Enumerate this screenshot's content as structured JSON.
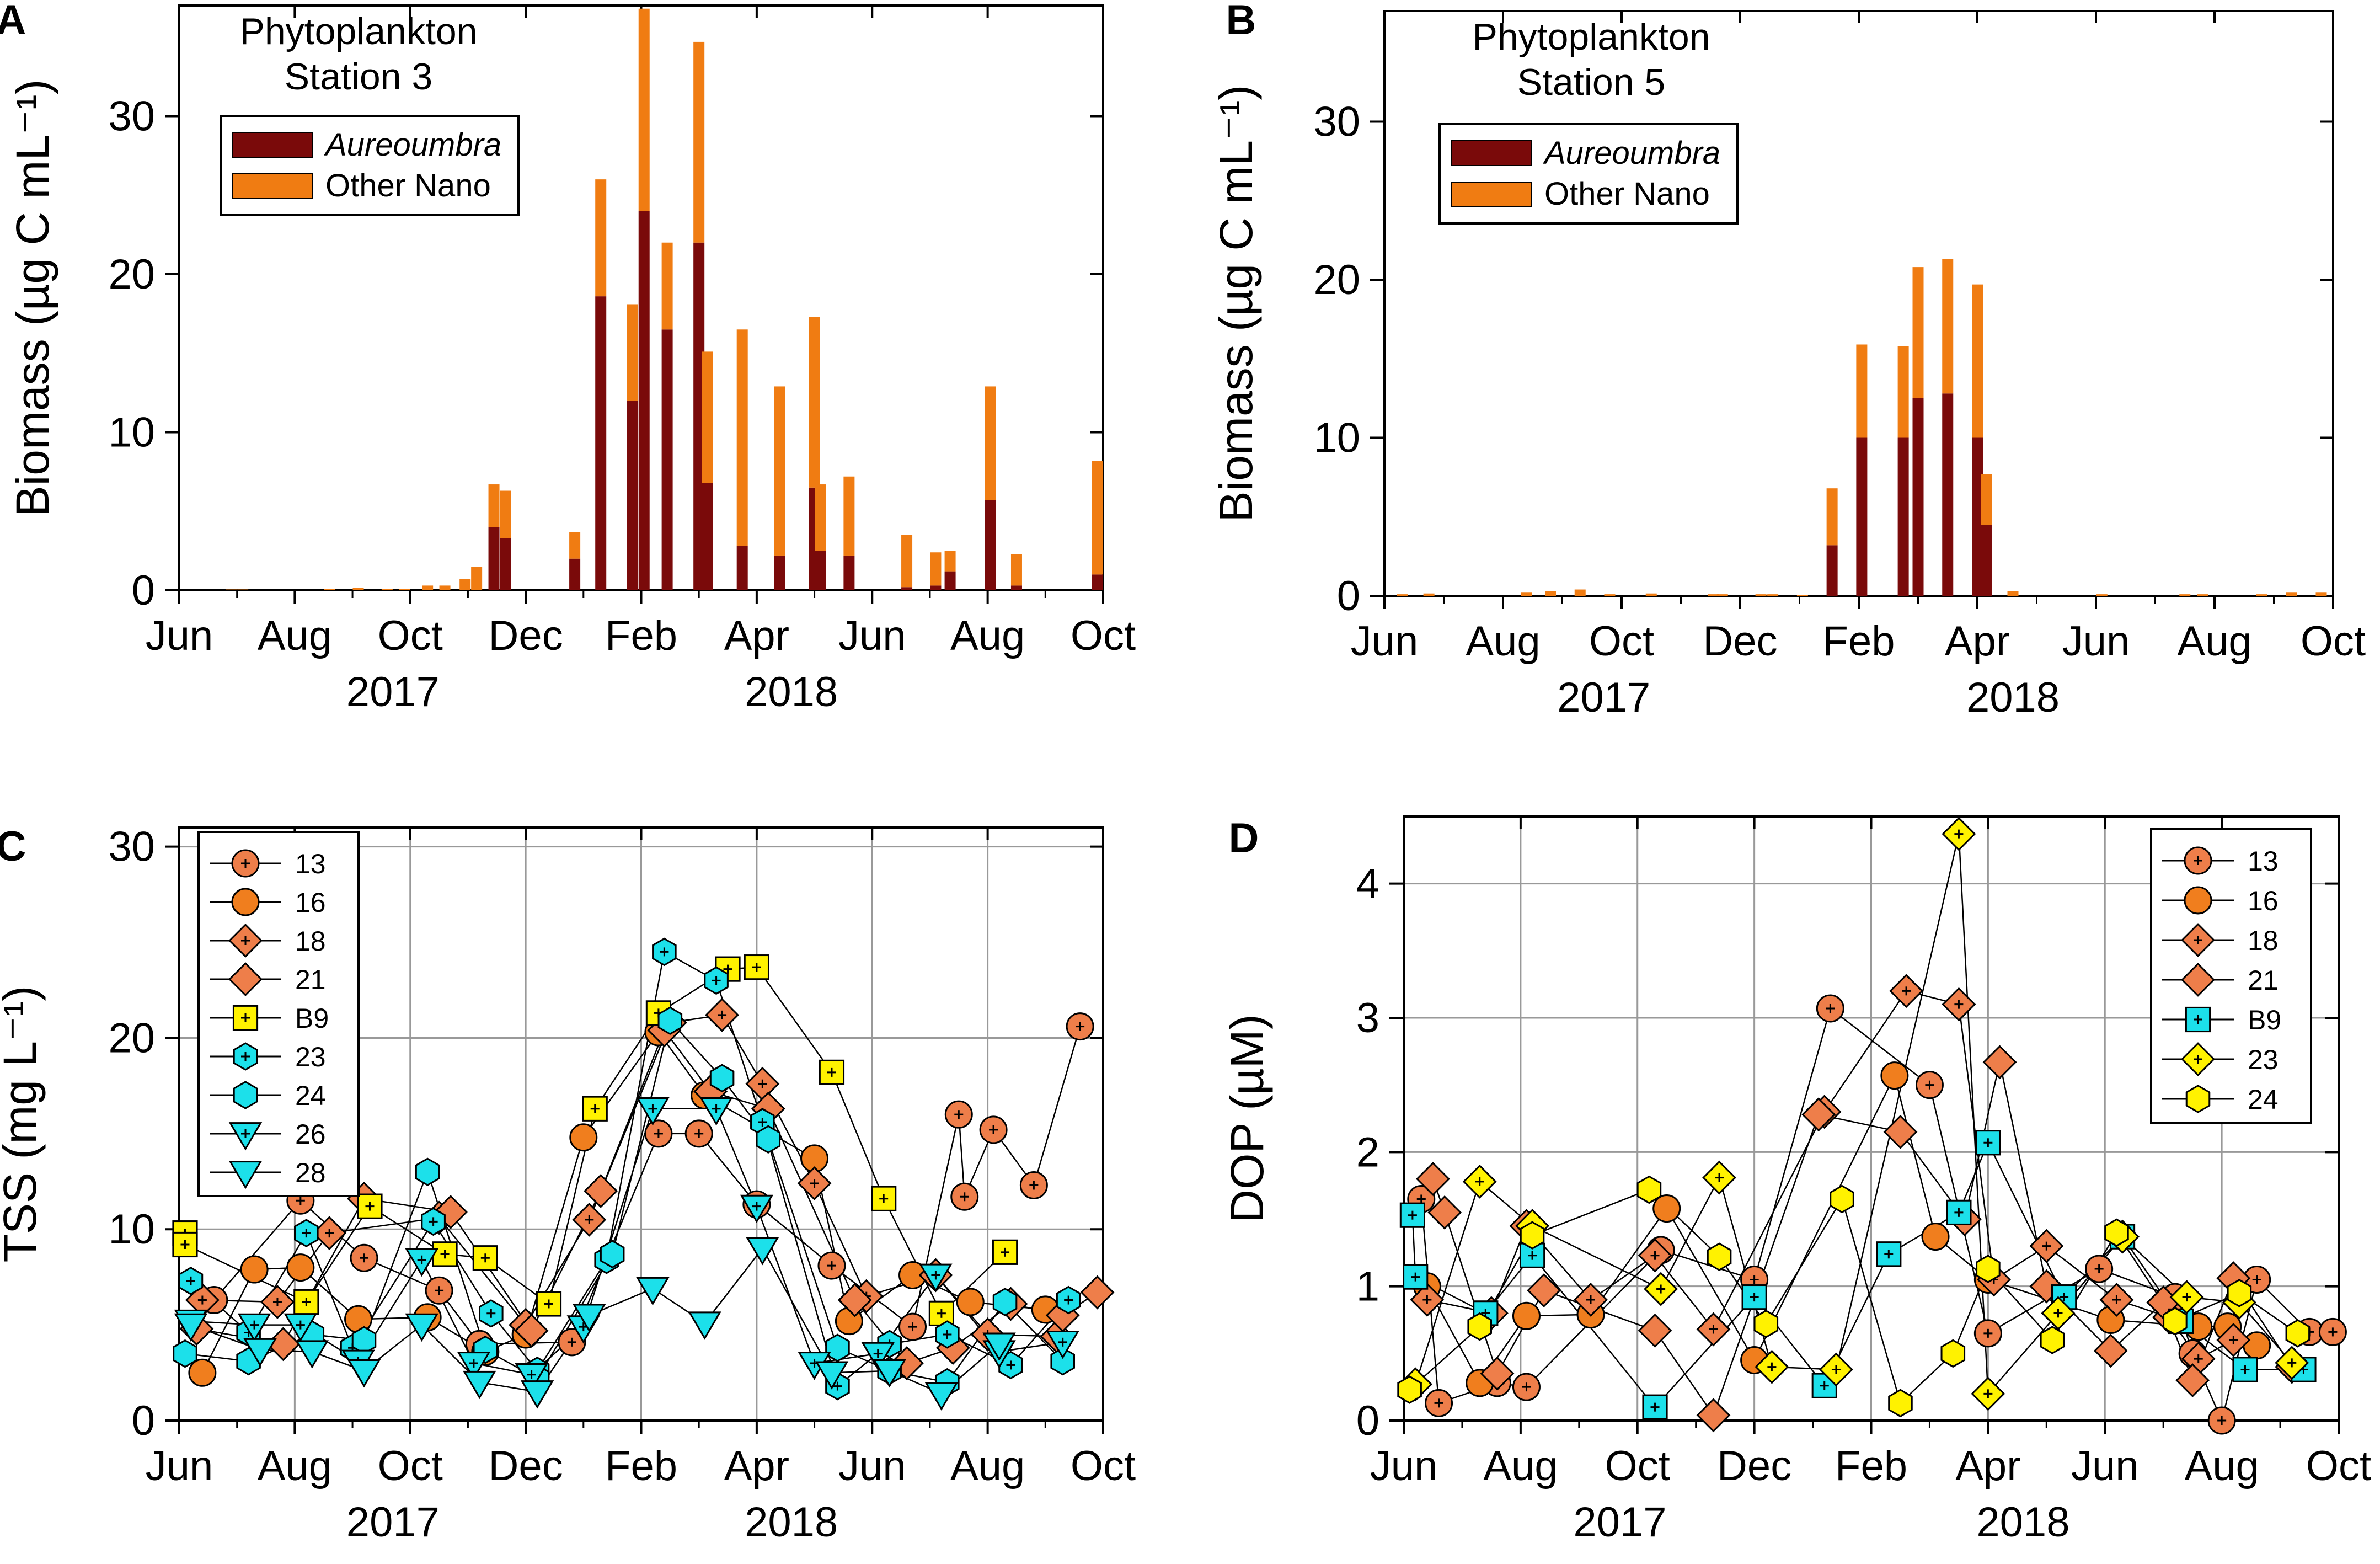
{
  "colors": {
    "aureoumbra": "#7a0a0a",
    "other_nano": "#f07c12",
    "s13": "#ee7e4a",
    "s16": "#f07e1e",
    "s18": "#ee7e4a",
    "s21": "#ee7e4a",
    "b9_yellow": "#fff200",
    "b9_cyan": "#1ce0ea",
    "cyan": "#1ce0ea",
    "yellow": "#fff200",
    "grid": "#999999"
  },
  "chart_data": [
    {
      "id": "A",
      "panel_label": "A",
      "type": "bar",
      "stacked": true,
      "title_line1": "Phytoplankton",
      "title_line2": "Station 3",
      "ylabel": "Biomass (µg C mL⁻¹)",
      "ylim": [
        0,
        37
      ],
      "yticks": [
        0,
        10,
        20,
        30
      ],
      "xlim": [
        0,
        16
      ],
      "xticks": [
        "Jun",
        "Aug",
        "Oct",
        "Dec",
        "Feb",
        "Apr",
        "Jun",
        "Aug",
        "Oct"
      ],
      "year_labels": [
        "2017",
        "2018"
      ],
      "legend": [
        "Aureoumbra",
        "Other Nano"
      ],
      "series": [
        {
          "name": "Aureoumbra",
          "values": [
            0,
            0,
            0,
            0,
            0,
            0,
            0,
            0,
            0,
            0,
            4.0,
            3.3,
            0,
            2.0,
            18.6,
            12.0,
            24.0,
            16.5,
            22.0,
            6.8,
            2.8,
            2.2,
            6.5,
            2.5,
            2.2,
            0.2,
            0.3,
            1.2,
            5.7,
            0.3,
            1.0
          ]
        },
        {
          "name": "Other Nano",
          "values": [
            0.05,
            0.05,
            0.1,
            0.15,
            0.1,
            0.1,
            0.3,
            0.3,
            0.7,
            1.5,
            2.7,
            3.0,
            0,
            1.7,
            7.4,
            6.1,
            12.8,
            5.5,
            12.7,
            8.3,
            13.7,
            10.7,
            10.8,
            4.2,
            5.0,
            3.3,
            2.1,
            1.3,
            7.2,
            2.0,
            7.2
          ]
        }
      ],
      "x": [
        0.9,
        1.1,
        2.6,
        3.1,
        3.6,
        3.9,
        4.3,
        4.6,
        4.95,
        5.15,
        5.45,
        5.65,
        6.4,
        6.85,
        7.3,
        7.85,
        8.05,
        8.45,
        9.0,
        9.15,
        9.75,
        10.4,
        11.0,
        11.1,
        11.6,
        12.6,
        13.1,
        13.35,
        14.05,
        14.5,
        15.9
      ]
    },
    {
      "id": "B",
      "panel_label": "B",
      "type": "bar",
      "stacked": true,
      "title_line1": "Phytoplankton",
      "title_line2": "Station 5",
      "ylabel": "Biomass (µg C mL⁻¹)",
      "ylim": [
        0,
        37
      ],
      "yticks": [
        0,
        10,
        20,
        30
      ],
      "xlim": [
        0,
        16
      ],
      "xticks": [
        "Jun",
        "Aug",
        "Oct",
        "Dec",
        "Feb",
        "Apr",
        "Jun",
        "Aug",
        "Oct"
      ],
      "year_labels": [
        "2017",
        "2018"
      ],
      "legend": [
        "Aureoumbra",
        "Other Nano"
      ],
      "series": [
        {
          "name": "Aureoumbra",
          "values": [
            0,
            0,
            0,
            0,
            0,
            0,
            0,
            0,
            0,
            0,
            0,
            0,
            3.2,
            10.0,
            10.0,
            12.5,
            12.8,
            10.0,
            4.5,
            0,
            0,
            0,
            0,
            0,
            0,
            0
          ]
        },
        {
          "name": "Other Nano",
          "values": [
            0.1,
            0.15,
            0.2,
            0.3,
            0.4,
            0.1,
            0.15,
            0.1,
            0.1,
            0.1,
            0.1,
            0.05,
            3.6,
            5.9,
            5.8,
            8.3,
            8.5,
            9.7,
            3.2,
            0.3,
            0.1,
            0.1,
            0.1,
            0.1,
            0.2,
            0.2
          ]
        }
      ],
      "x": [
        0.3,
        0.75,
        2.4,
        2.8,
        3.3,
        3.8,
        4.5,
        5.55,
        5.7,
        6.35,
        6.55,
        7.05,
        7.55,
        8.05,
        8.75,
        9.0,
        9.5,
        10.0,
        10.15,
        10.6,
        12.1,
        13.5,
        13.8,
        14.8,
        15.3,
        15.8
      ]
    },
    {
      "id": "C",
      "panel_label": "C",
      "type": "scatter",
      "ylabel": "TSS (mg L⁻¹)",
      "ylim": [
        0,
        31
      ],
      "yticks": [
        0,
        10,
        20,
        30
      ],
      "xlim": [
        0,
        16
      ],
      "xticks": [
        "Jun",
        "Aug",
        "Oct",
        "Dec",
        "Feb",
        "Apr",
        "Jun",
        "Aug",
        "Oct"
      ],
      "year_labels": [
        "2017",
        "2018"
      ],
      "legend": [
        "13",
        "16",
        "18",
        "21",
        "B9",
        "23",
        "24",
        "26",
        "28"
      ],
      "series": [
        {
          "name": "13",
          "marker": "circle",
          "cross": true,
          "color": "s13",
          "x": [
            0.6,
            2.1,
            3.2,
            4.5,
            5.2,
            6.8,
            8.3,
            9.0,
            10.0,
            11.3,
            12.7,
            13.5,
            14.1,
            13.6,
            14.8,
            15.6
          ],
          "y": [
            6.3,
            11.5,
            8.5,
            6.8,
            4.0,
            4.1,
            15.0,
            15.0,
            11.3,
            8.1,
            4.9,
            16.0,
            15.2,
            11.7,
            12.3,
            20.6
          ]
        },
        {
          "name": "16",
          "marker": "circle",
          "cross": false,
          "color": "s16",
          "x": [
            0.4,
            1.3,
            2.1,
            3.1,
            4.3,
            5.3,
            6.0,
            7.0,
            8.3,
            9.1,
            11.0,
            11.6,
            12.7,
            13.7,
            15.0
          ],
          "y": [
            2.5,
            7.9,
            8.0,
            5.3,
            5.4,
            3.6,
            4.5,
            14.8,
            20.3,
            17.0,
            13.7,
            5.2,
            7.6,
            6.2,
            5.8
          ]
        },
        {
          "name": "18",
          "marker": "diamond",
          "cross": true,
          "color": "s18",
          "x": [
            0.4,
            1.7,
            2.6,
            4.5,
            6.0,
            7.1,
            8.5,
            9.4,
            10.1,
            11.0,
            11.9,
            13.1,
            14.0,
            15.2
          ],
          "y": [
            6.3,
            6.2,
            9.8,
            10.6,
            5.0,
            10.5,
            20.8,
            21.2,
            17.6,
            12.4,
            6.5,
            7.6,
            4.5,
            4.4
          ]
        },
        {
          "name": "21",
          "marker": "diamond",
          "cross": false,
          "color": "s21",
          "x": [
            0.3,
            1.8,
            3.2,
            4.7,
            6.1,
            7.3,
            8.4,
            9.2,
            10.2,
            11.7,
            12.6,
            13.4,
            14.4,
            15.3,
            15.9
          ],
          "y": [
            4.8,
            4.0,
            11.6,
            10.9,
            4.7,
            12.0,
            20.4,
            17.2,
            16.3,
            6.3,
            3.0,
            3.8,
            6.1,
            5.5,
            6.7
          ]
        },
        {
          "name": "B9",
          "marker": "square",
          "cross": true,
          "color": "yellow",
          "x": [
            0.1,
            0.1,
            2.2,
            3.3,
            4.6,
            5.3,
            6.4,
            7.2,
            8.3,
            9.5,
            10.0,
            11.3,
            12.2,
            13.2,
            14.3
          ],
          "y": [
            9.8,
            9.2,
            6.2,
            11.2,
            8.7,
            8.5,
            6.1,
            16.3,
            21.3,
            23.6,
            23.7,
            18.2,
            11.6,
            5.6,
            8.8
          ]
        },
        {
          "name": "23",
          "marker": "hexagon",
          "cross": true,
          "color": "cyan",
          "x": [
            0.2,
            1.2,
            2.2,
            3.0,
            4.4,
            5.4,
            6.2,
            7.4,
            8.4,
            9.3,
            10.1,
            11.4,
            12.3,
            13.3,
            14.4,
            15.4
          ],
          "y": [
            7.3,
            4.6,
            9.8,
            3.8,
            10.4,
            5.6,
            2.6,
            8.4,
            24.5,
            23.0,
            15.6,
            1.8,
            4.0,
            4.5,
            2.9,
            6.3
          ]
        },
        {
          "name": "24",
          "marker": "hexagon",
          "cross": false,
          "color": "cyan",
          "x": [
            0.1,
            1.2,
            2.3,
            3.2,
            4.3,
            5.3,
            6.2,
            7.5,
            8.5,
            9.4,
            10.2,
            11.4,
            12.3,
            13.3,
            14.3,
            15.3
          ],
          "y": [
            3.5,
            3.1,
            4.5,
            4.2,
            13.0,
            3.7,
            2.2,
            8.7,
            20.9,
            17.9,
            14.7,
            3.8,
            2.6,
            2.0,
            6.2,
            3.1
          ]
        },
        {
          "name": "26",
          "marker": "triangle-down",
          "cross": true,
          "color": "cyan",
          "x": [
            0.2,
            1.3,
            2.1,
            3.1,
            4.2,
            5.1,
            6.1,
            7.0,
            8.2,
            9.3,
            10.0,
            11.0,
            12.1,
            13.1,
            14.2,
            15.3
          ],
          "y": [
            5.2,
            5.0,
            5.0,
            3.1,
            8.4,
            3.0,
            2.4,
            4.9,
            16.3,
            16.3,
            11.2,
            3.0,
            3.5,
            7.6,
            3.6,
            4.1
          ]
        },
        {
          "name": "28",
          "marker": "triangle-down",
          "cross": false,
          "color": "cyan",
          "x": [
            0.2,
            1.4,
            2.3,
            3.2,
            4.2,
            5.2,
            6.2,
            7.1,
            8.2,
            9.1,
            10.1,
            11.3,
            12.3,
            13.2,
            14.2
          ],
          "y": [
            5.0,
            3.7,
            3.6,
            2.6,
            5.0,
            2.0,
            1.5,
            5.5,
            6.9,
            5.1,
            9.0,
            2.5,
            2.6,
            1.4,
            4.0
          ]
        }
      ]
    },
    {
      "id": "D",
      "panel_label": "D",
      "type": "scatter",
      "ylabel": "DOP (µM)",
      "ylim": [
        0,
        4.5
      ],
      "yticks": [
        0,
        1,
        2,
        3,
        4
      ],
      "xlim": [
        0,
        16
      ],
      "xticks": [
        "Jun",
        "Aug",
        "Oct",
        "Dec",
        "Feb",
        "Apr",
        "Jun",
        "Aug",
        "Oct"
      ],
      "year_labels": [
        "2017",
        "2018"
      ],
      "legend": [
        "13",
        "16",
        "18",
        "21",
        "B9",
        "23",
        "24"
      ],
      "series": [
        {
          "name": "13",
          "marker": "circle",
          "cross": true,
          "color": "s13",
          "x": [
            0.3,
            0.6,
            1.6,
            2.1,
            4.4,
            6.0,
            7.3,
            9.0,
            10.0,
            11.9,
            13.2,
            14.0,
            14.6,
            15.5,
            15.9,
            13.5
          ],
          "y": [
            1.65,
            0.13,
            0.28,
            0.25,
            1.27,
            1.05,
            3.07,
            2.5,
            0.65,
            1.13,
            0.92,
            0.0,
            1.05,
            0.66,
            0.66,
            0.5
          ]
        },
        {
          "name": "16",
          "marker": "circle",
          "cross": false,
          "color": "s16",
          "x": [
            0.4,
            1.3,
            2.1,
            3.2,
            4.5,
            6.0,
            8.4,
            9.1,
            10.0,
            12.1,
            13.6,
            14.1,
            14.6
          ],
          "y": [
            1.0,
            0.28,
            0.78,
            0.79,
            1.58,
            0.45,
            2.57,
            1.37,
            1.05,
            0.75,
            0.7,
            0.7,
            0.56
          ]
        },
        {
          "name": "18",
          "marker": "diamond",
          "cross": true,
          "color": "s18",
          "x": [
            0.4,
            1.5,
            2.1,
            3.2,
            4.3,
            5.3,
            7.2,
            8.6,
            9.5,
            10.1,
            11.0,
            12.2,
            13.1,
            13.6,
            14.2
          ],
          "y": [
            0.9,
            0.8,
            1.45,
            0.9,
            1.23,
            0.68,
            2.3,
            3.2,
            3.1,
            1.05,
            1.3,
            0.9,
            0.77,
            0.46,
            0.6
          ]
        },
        {
          "name": "21",
          "marker": "diamond",
          "cross": false,
          "color": "s21",
          "x": [
            0.5,
            0.7,
            1.6,
            2.4,
            4.3,
            5.3,
            7.1,
            8.5,
            9.6,
            10.2,
            11.0,
            12.1,
            13.0,
            13.5,
            14.2,
            15.2
          ],
          "y": [
            1.8,
            1.55,
            0.35,
            0.97,
            0.67,
            0.04,
            2.28,
            2.15,
            1.5,
            2.67,
            1.0,
            0.52,
            0.88,
            0.3,
            1.06,
            0.4
          ]
        },
        {
          "name": "B9",
          "marker": "square",
          "cross": true,
          "color": "cyan",
          "x": [
            0.15,
            0.2,
            1.4,
            2.2,
            4.3,
            6.0,
            7.2,
            8.3,
            9.5,
            10.0,
            11.3,
            12.3,
            13.3,
            14.4,
            15.4
          ],
          "y": [
            1.53,
            1.07,
            0.8,
            1.23,
            0.1,
            0.92,
            0.26,
            1.24,
            1.55,
            2.07,
            0.92,
            1.37,
            0.74,
            0.38,
            0.38
          ]
        },
        {
          "name": "23",
          "marker": "diamond",
          "cross": true,
          "color": "yellow",
          "x": [
            0.2,
            1.3,
            2.2,
            4.4,
            5.4,
            6.3,
            7.4,
            9.5,
            10.0,
            11.2,
            12.3,
            13.4,
            14.3,
            15.2
          ],
          "y": [
            0.27,
            1.78,
            1.45,
            0.98,
            1.81,
            0.4,
            0.38,
            4.37,
            0.2,
            0.8,
            1.37,
            0.92,
            0.88,
            0.43
          ]
        },
        {
          "name": "24",
          "marker": "hexagon",
          "cross": false,
          "color": "yellow",
          "x": [
            0.1,
            1.3,
            2.2,
            4.2,
            5.4,
            6.2,
            7.5,
            8.5,
            9.4,
            10.0,
            11.1,
            12.2,
            13.2,
            14.3,
            15.3
          ],
          "y": [
            0.23,
            0.7,
            1.38,
            1.72,
            1.22,
            0.72,
            1.65,
            0.13,
            0.5,
            1.13,
            0.6,
            1.4,
            0.74,
            0.95,
            0.65
          ]
        }
      ]
    }
  ]
}
